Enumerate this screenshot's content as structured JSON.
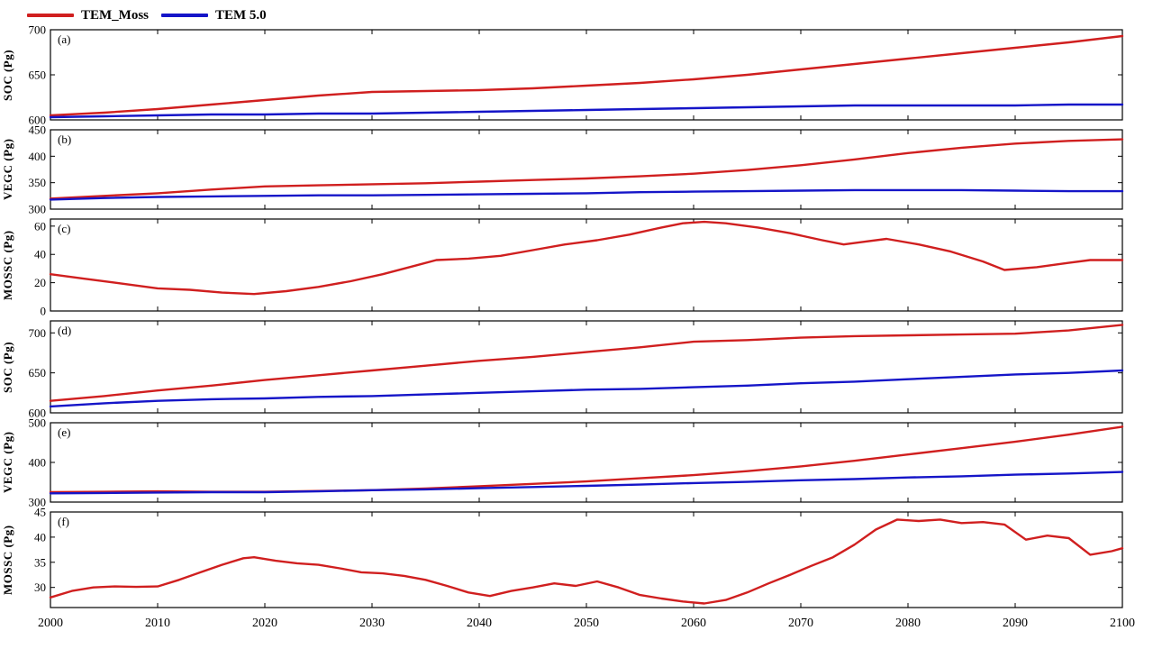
{
  "legend": {
    "series": [
      {
        "label": "TEM_Moss",
        "color": "#d01f1f"
      },
      {
        "label": "TEM 5.0",
        "color": "#1515c8"
      }
    ]
  },
  "x_axis": {
    "range": [
      2000,
      2100
    ],
    "ticks": [
      2000,
      2010,
      2020,
      2030,
      2040,
      2050,
      2060,
      2070,
      2080,
      2090,
      2100
    ]
  },
  "style": {
    "axis_color": "#000000",
    "line_width": 2.4
  },
  "chart_data": [
    {
      "type": "line",
      "panel_label": "(a)",
      "ylabel": "SOC (Pg)",
      "ylim": [
        600,
        700
      ],
      "yticks": [
        600,
        650,
        700
      ],
      "x": [
        2000,
        2005,
        2010,
        2015,
        2020,
        2025,
        2030,
        2035,
        2040,
        2045,
        2050,
        2055,
        2060,
        2065,
        2070,
        2075,
        2080,
        2085,
        2090,
        2095,
        2100
      ],
      "series": [
        {
          "name": "TEM_Moss",
          "color": "#d01f1f",
          "values": [
            605,
            608,
            612,
            617,
            622,
            627,
            631,
            632,
            633,
            635,
            638,
            641,
            645,
            650,
            656,
            662,
            668,
            674,
            680,
            686,
            693
          ]
        },
        {
          "name": "TEM 5.0",
          "color": "#1515c8",
          "values": [
            603,
            604,
            605,
            606,
            606,
            607,
            607,
            608,
            609,
            610,
            611,
            612,
            613,
            614,
            615,
            616,
            616,
            616,
            616,
            617,
            617
          ]
        }
      ]
    },
    {
      "type": "line",
      "panel_label": "(b)",
      "ylabel": "VEGC (Pg)",
      "ylim": [
        300,
        450
      ],
      "yticks": [
        300,
        350,
        400,
        450
      ],
      "x": [
        2000,
        2005,
        2010,
        2015,
        2020,
        2025,
        2030,
        2035,
        2040,
        2045,
        2050,
        2055,
        2060,
        2065,
        2070,
        2075,
        2080,
        2085,
        2090,
        2095,
        2100
      ],
      "series": [
        {
          "name": "TEM_Moss",
          "color": "#d01f1f",
          "values": [
            320,
            325,
            330,
            337,
            343,
            345,
            347,
            349,
            352,
            355,
            358,
            362,
            367,
            374,
            383,
            394,
            406,
            416,
            424,
            429,
            432
          ]
        },
        {
          "name": "TEM 5.0",
          "color": "#1515c8",
          "values": [
            318,
            321,
            323,
            324,
            325,
            326,
            326,
            327,
            328,
            329,
            330,
            332,
            333,
            334,
            335,
            336,
            336,
            336,
            335,
            334,
            334
          ]
        }
      ]
    },
    {
      "type": "line",
      "panel_label": "(c)",
      "ylabel": "MOSSC (Pg)",
      "ylim": [
        0,
        65
      ],
      "yticks": [
        0,
        20,
        40,
        60
      ],
      "x": [
        2000,
        2003,
        2006,
        2010,
        2013,
        2016,
        2019,
        2022,
        2025,
        2028,
        2031,
        2034,
        2036,
        2039,
        2042,
        2045,
        2048,
        2051,
        2054,
        2057,
        2059,
        2061,
        2063,
        2066,
        2069,
        2072,
        2074,
        2076,
        2078,
        2081,
        2084,
        2087,
        2089,
        2092,
        2095,
        2097,
        2100
      ],
      "series": [
        {
          "name": "TEM_Moss",
          "color": "#d01f1f",
          "values": [
            26,
            23,
            20,
            16,
            15,
            13,
            12,
            14,
            17,
            21,
            26,
            32,
            36,
            37,
            39,
            43,
            47,
            50,
            54,
            59,
            62,
            63,
            62,
            59,
            55,
            50,
            47,
            49,
            51,
            47,
            42,
            35,
            29,
            31,
            34,
            36,
            36
          ]
        }
      ]
    },
    {
      "type": "line",
      "panel_label": "(d)",
      "ylabel": "SOC (Pg)",
      "ylim": [
        600,
        715
      ],
      "yticks": [
        600,
        650,
        700
      ],
      "x": [
        2000,
        2005,
        2010,
        2015,
        2020,
        2025,
        2030,
        2035,
        2040,
        2045,
        2050,
        2055,
        2060,
        2065,
        2070,
        2075,
        2080,
        2085,
        2090,
        2095,
        2100
      ],
      "series": [
        {
          "name": "TEM_Moss",
          "color": "#d01f1f",
          "values": [
            615,
            621,
            628,
            634,
            641,
            647,
            653,
            659,
            665,
            670,
            676,
            682,
            689,
            691,
            694,
            696,
            697,
            698,
            699,
            703,
            710
          ]
        },
        {
          "name": "TEM 5.0",
          "color": "#1515c8",
          "values": [
            608,
            612,
            615,
            617,
            618,
            620,
            621,
            623,
            625,
            627,
            629,
            630,
            632,
            634,
            637,
            639,
            642,
            645,
            648,
            650,
            653
          ]
        }
      ]
    },
    {
      "type": "line",
      "panel_label": "(e)",
      "ylabel": "VEGC (Pg)",
      "ylim": [
        300,
        500
      ],
      "yticks": [
        300,
        400,
        500
      ],
      "x": [
        2000,
        2005,
        2010,
        2015,
        2020,
        2025,
        2030,
        2035,
        2040,
        2045,
        2050,
        2055,
        2060,
        2065,
        2070,
        2075,
        2080,
        2085,
        2090,
        2095,
        2100
      ],
      "series": [
        {
          "name": "TEM_Moss",
          "color": "#d01f1f",
          "values": [
            325,
            326,
            327,
            326,
            326,
            328,
            330,
            334,
            340,
            346,
            352,
            360,
            368,
            378,
            390,
            404,
            420,
            436,
            452,
            470,
            490
          ]
        },
        {
          "name": "TEM 5.0",
          "color": "#1515c8",
          "values": [
            322,
            323,
            324,
            325,
            325,
            327,
            330,
            332,
            335,
            338,
            341,
            344,
            348,
            351,
            355,
            358,
            362,
            365,
            369,
            372,
            376
          ]
        }
      ]
    },
    {
      "type": "line",
      "panel_label": "(f)",
      "ylabel": "MOSSC (Pg)",
      "ylim": [
        26,
        45
      ],
      "yticks": [
        30,
        35,
        40,
        45
      ],
      "x": [
        2000,
        2002,
        2004,
        2006,
        2008,
        2010,
        2012,
        2014,
        2016,
        2018,
        2019,
        2021,
        2023,
        2025,
        2027,
        2029,
        2031,
        2033,
        2035,
        2037,
        2039,
        2041,
        2043,
        2045,
        2047,
        2049,
        2051,
        2053,
        2055,
        2057,
        2059,
        2061,
        2063,
        2065,
        2067,
        2069,
        2071,
        2073,
        2075,
        2077,
        2079,
        2081,
        2083,
        2085,
        2087,
        2089,
        2091,
        2093,
        2095,
        2097,
        2099,
        2100
      ],
      "series": [
        {
          "name": "TEM_Moss",
          "color": "#d01f1f",
          "values": [
            28.0,
            29.3,
            30.0,
            30.2,
            30.1,
            30.2,
            31.5,
            33.0,
            34.5,
            35.8,
            36.0,
            35.3,
            34.8,
            34.5,
            33.8,
            33.0,
            32.8,
            32.3,
            31.5,
            30.3,
            29.0,
            28.3,
            29.3,
            30.0,
            30.8,
            30.3,
            31.2,
            30.0,
            28.5,
            27.8,
            27.2,
            26.8,
            27.5,
            29.0,
            30.8,
            32.5,
            34.3,
            36.0,
            38.5,
            41.5,
            43.5,
            43.2,
            43.5,
            42.8,
            43.0,
            42.5,
            39.5,
            40.3,
            39.8,
            36.5,
            37.2,
            37.8
          ]
        }
      ]
    }
  ]
}
